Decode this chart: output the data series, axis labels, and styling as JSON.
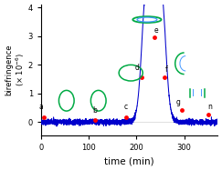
{
  "xlabel": "time (min)",
  "xlim": [
    0,
    370
  ],
  "ylim": [
    -4.5e-07,
    4.1e-06
  ],
  "yticks": [
    0,
    1e-06,
    2e-06,
    3e-06,
    4e-06
  ],
  "ytick_labels": [
    "0",
    "1",
    "2",
    "3",
    "4"
  ],
  "xticks": [
    0,
    100,
    200,
    300
  ],
  "bg_color": "#ffffff",
  "line_color": "#0000cc",
  "marker_color": "#ff0000",
  "shape_color": "#00aa44",
  "shape_inner_color": "#4499ff",
  "labeled_points": {
    "a": [
      5,
      1.8e-07
    ],
    "b": [
      113,
      6e-08
    ],
    "c": [
      178,
      1.7e-07
    ],
    "d": [
      210,
      1.58e-06
    ],
    "e": [
      237,
      2.97e-06
    ],
    "f": [
      258,
      1.58e-06
    ],
    "g": [
      295,
      4.2e-07
    ],
    "n": [
      350,
      2.8e-07
    ]
  },
  "noise_seed": 42
}
